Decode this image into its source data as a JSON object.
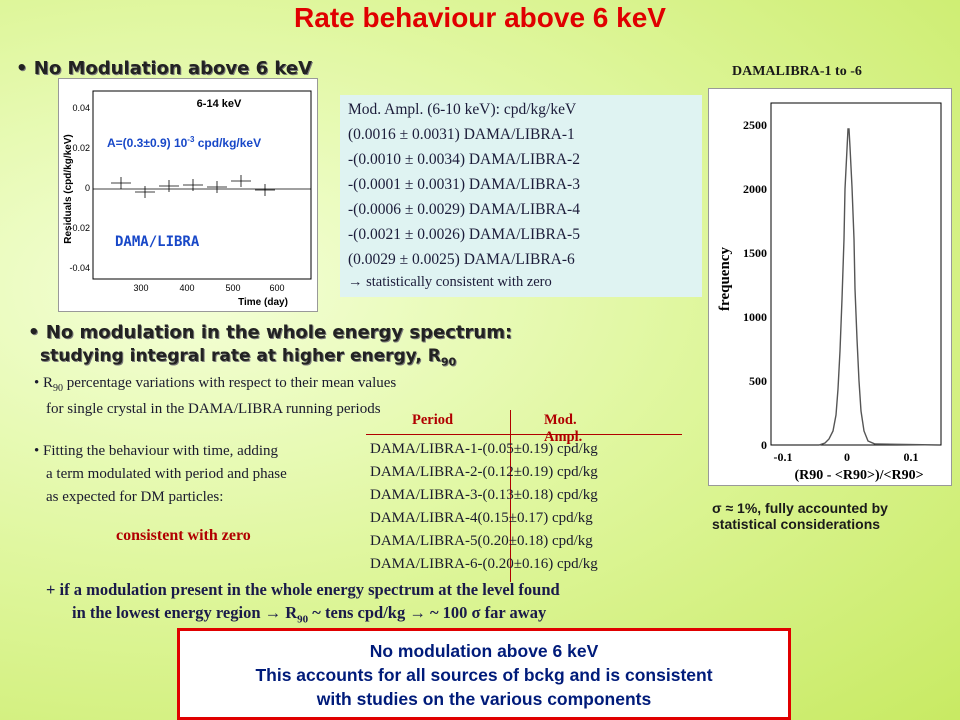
{
  "title": "Rate behaviour above 6 keV",
  "section1": {
    "heading": "No Modulation above 6 keV",
    "plot": {
      "energy_range": "6-14 keV",
      "fit_label_main": "A=(0.3±0.9) 10",
      "fit_label_exp": "-3",
      "fit_label_unit": " cpd/kg/keV",
      "source_label": "DAMA/LIBRA",
      "ylabel": "Residuals (cpd/kg/keV)",
      "xlabel": "Time (day)",
      "yticks": [
        "0.04",
        "0.02",
        "0",
        "-0.02",
        "-0.04"
      ],
      "xticks": [
        "300",
        "400",
        "500",
        "600"
      ]
    },
    "mod_ampl": {
      "header": "Mod. Ampl. (6-10 keV): cpd/kg/keV",
      "rows": [
        " (0.0016 ± 0.0031) DAMA/LIBRA-1",
        "-(0.0010 ± 0.0034) DAMA/LIBRA-2",
        "-(0.0001 ± 0.0031) DAMA/LIBRA-3",
        "-(0.0006 ± 0.0029) DAMA/LIBRA-4",
        "-(0.0021 ± 0.0026) DAMA/LIBRA-5",
        " (0.0029 ± 0.0025) DAMA/LIBRA-6"
      ],
      "conclusion": "→ statistically consistent with zero"
    }
  },
  "histogram": {
    "title": "DAMALIBRA-1 to -6",
    "ylabel": "frequency",
    "yticks": [
      "2500",
      "2000",
      "1500",
      "1000",
      "500",
      "0"
    ],
    "xticks": [
      "-0.1",
      "0",
      "0.1"
    ],
    "xlabel": "(R90 - <R90>)/<R90>",
    "caption_line1": "σ ≈ 1%, fully accounted by",
    "caption_line2": "statistical considerations"
  },
  "section2": {
    "heading": "No modulation in the whole energy spectrum:",
    "subheading": "studying integral rate at higher energy, R",
    "subheading_sub": "90",
    "bullet1_pre": "R",
    "bullet1_sub": "90",
    "bullet1_post": " percentage variations with respect to their mean values",
    "bullet1_line2": "for single crystal in the DAMA/LIBRA running periods",
    "bullet2_line1": "Fitting the behaviour with time, adding",
    "bullet2_line2": "a term modulated with period and phase",
    "bullet2_line3": "as expected for DM particles:",
    "consistent": "consistent with zero",
    "table": {
      "headers": [
        "Period",
        "Mod. Ampl."
      ],
      "rows": [
        [
          "DAMA/LIBRA-1",
          "-(0.05±0.19) cpd/kg"
        ],
        [
          "DAMA/LIBRA-2",
          "-(0.12±0.19) cpd/kg"
        ],
        [
          "DAMA/LIBRA-3",
          "-(0.13±0.18) cpd/kg"
        ],
        [
          "DAMA/LIBRA-4",
          " (0.15±0.17) cpd/kg"
        ],
        [
          "DAMA/LIBRA-5",
          " (0.20±0.18) cpd/kg"
        ],
        [
          "DAMA/LIBRA-6",
          "-(0.20±0.16) cpd/kg"
        ]
      ]
    },
    "note_line1": "+ if a modulation present in the whole energy spectrum at the level found",
    "note_line2_pre": "in the lowest energy region → R",
    "note_line2_sub": "90",
    "note_line2_post": " ~ tens cpd/kg → ~ 100 σ far away"
  },
  "bottom_box": {
    "line1": "No modulation above 6 keV",
    "line2": "This accounts for all sources of bckg and is consistent",
    "line3": "with studies on the various components"
  }
}
